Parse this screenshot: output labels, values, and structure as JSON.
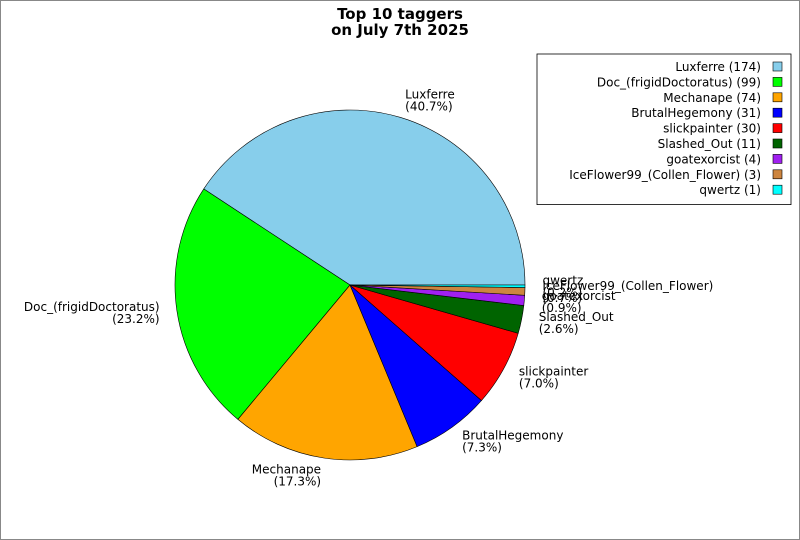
{
  "chart_data": {
    "type": "pie",
    "title": [
      "Top 10 taggers",
      "on July 7th 2025"
    ],
    "categories": [
      "Luxferre",
      "Doc_(frigidDoctoratus)",
      "Mechanape",
      "BrutalHegemony",
      "slickpainter",
      "Slashed_Out",
      "goatexorcist",
      "IceFlower99_(Collen_Flower)",
      "qwertz"
    ],
    "values": [
      174,
      99,
      74,
      31,
      30,
      11,
      4,
      3,
      1
    ],
    "value_labels": [
      "(40.7%)",
      "(23.2%)",
      "(17.3%)",
      "(7.3%)",
      "(7.0%)",
      "(2.6%)",
      "(0.9%)",
      "(0.7%)",
      "(0.2%)"
    ],
    "legend_labels": [
      "Luxferre (174)",
      "Doc_(frigidDoctoratus) (99)",
      "Mechanape (74)",
      "BrutalHegemony (31)",
      "slickpainter (30)",
      "Slashed_Out (11)",
      "goatexorcist (4)",
      "IceFlower99_(Collen_Flower) (3)",
      "qwertz (1)"
    ],
    "colors": [
      "#87ceeb",
      "#00ff00",
      "#ffa500",
      "#0000ff",
      "#ff0000",
      "#006400",
      "#a020f0",
      "#cd853f",
      "#00ffff"
    ],
    "legend": "upper right"
  }
}
